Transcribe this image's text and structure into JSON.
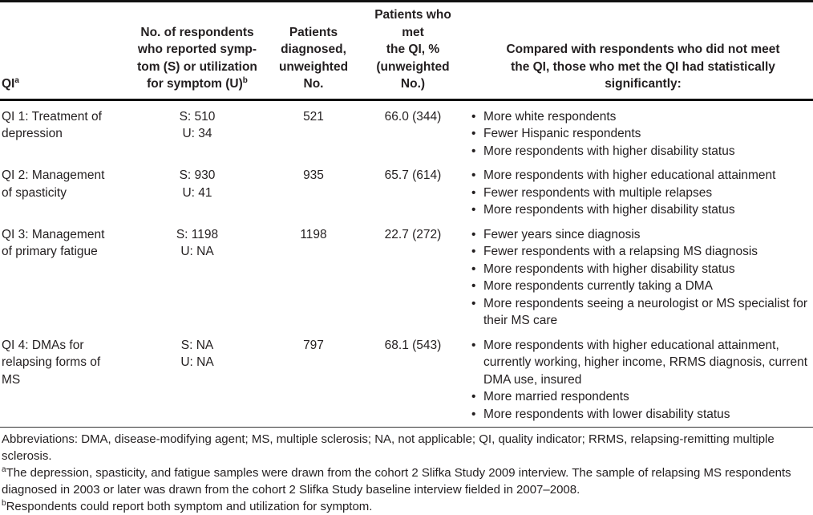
{
  "colors": {
    "text": "#231f20",
    "rule_heavy": "#111111",
    "rule_light": "#333333",
    "background": "#ffffff"
  },
  "bullet_char": "•",
  "header": {
    "col_qi": {
      "text": "QI",
      "sup": "a"
    },
    "col_respondents": {
      "text": "No. of respondents\nwho reported symp-\ntom (S) or utilization\nfor symptom (U)",
      "sup": "b"
    },
    "col_diagnosed": {
      "text": "Patients\ndiagnosed,\nunweighted\nNo."
    },
    "col_met": {
      "text": "Patients who met\nthe QI, %\n(unweighted\nNo.)"
    },
    "col_compared": {
      "text": "Compared with respondents who did not meet\nthe QI, those who met the QI had statistically\nsignificantly:"
    }
  },
  "rows": [
    {
      "qi": "QI 1: Treatment of\ndepression",
      "respondents": "S: 510\nU: 34",
      "diagnosed": "521",
      "met_qi": "66.0 (344)",
      "findings": [
        "More white respondents",
        "Fewer Hispanic respondents",
        "More respondents with higher disability status"
      ]
    },
    {
      "qi": "QI 2: Management\nof spasticity",
      "respondents": "S: 930\nU: 41",
      "diagnosed": "935",
      "met_qi": "65.7 (614)",
      "findings": [
        "More respondents with higher educational attainment",
        "Fewer respondents with multiple relapses",
        "More respondents with higher disability status"
      ]
    },
    {
      "qi": "QI 3: Management\nof primary fatigue",
      "respondents": "S: 1198\nU: NA",
      "diagnosed": "1198",
      "met_qi": "22.7 (272)",
      "findings": [
        "Fewer years since diagnosis",
        "Fewer respondents with a relapsing MS diagnosis",
        "More respondents with higher disability status",
        "More respondents currently taking a DMA",
        "More respondents seeing a neurologist or MS specialist for their MS care"
      ]
    },
    {
      "qi": "QI 4: DMAs for\nrelapsing forms of\nMS",
      "respondents": "S: NA\nU: NA",
      "diagnosed": "797",
      "met_qi": "68.1 (543)",
      "findings": [
        "More respondents with higher educational attainment, currently working, higher income, RRMS diagnosis, current DMA use, insured",
        "More married respondents",
        "More respondents with lower disability status"
      ]
    }
  ],
  "footnotes": [
    {
      "sup": "",
      "text": "Abbreviations: DMA, disease-modifying agent; MS, multiple sclerosis; NA, not applicable; QI, quality indicator; RRMS, relapsing-remitting multiple sclerosis."
    },
    {
      "sup": "a",
      "text": "The depression, spasticity, and fatigue samples were drawn from the cohort 2 Slifka Study 2009 interview. The sample of relapsing MS respondents diagnosed in 2003 or later was drawn from the cohort 2 Slifka Study baseline interview fielded in 2007–2008."
    },
    {
      "sup": "b",
      "text": "Respondents could report both symptom and utilization for symptom."
    }
  ]
}
